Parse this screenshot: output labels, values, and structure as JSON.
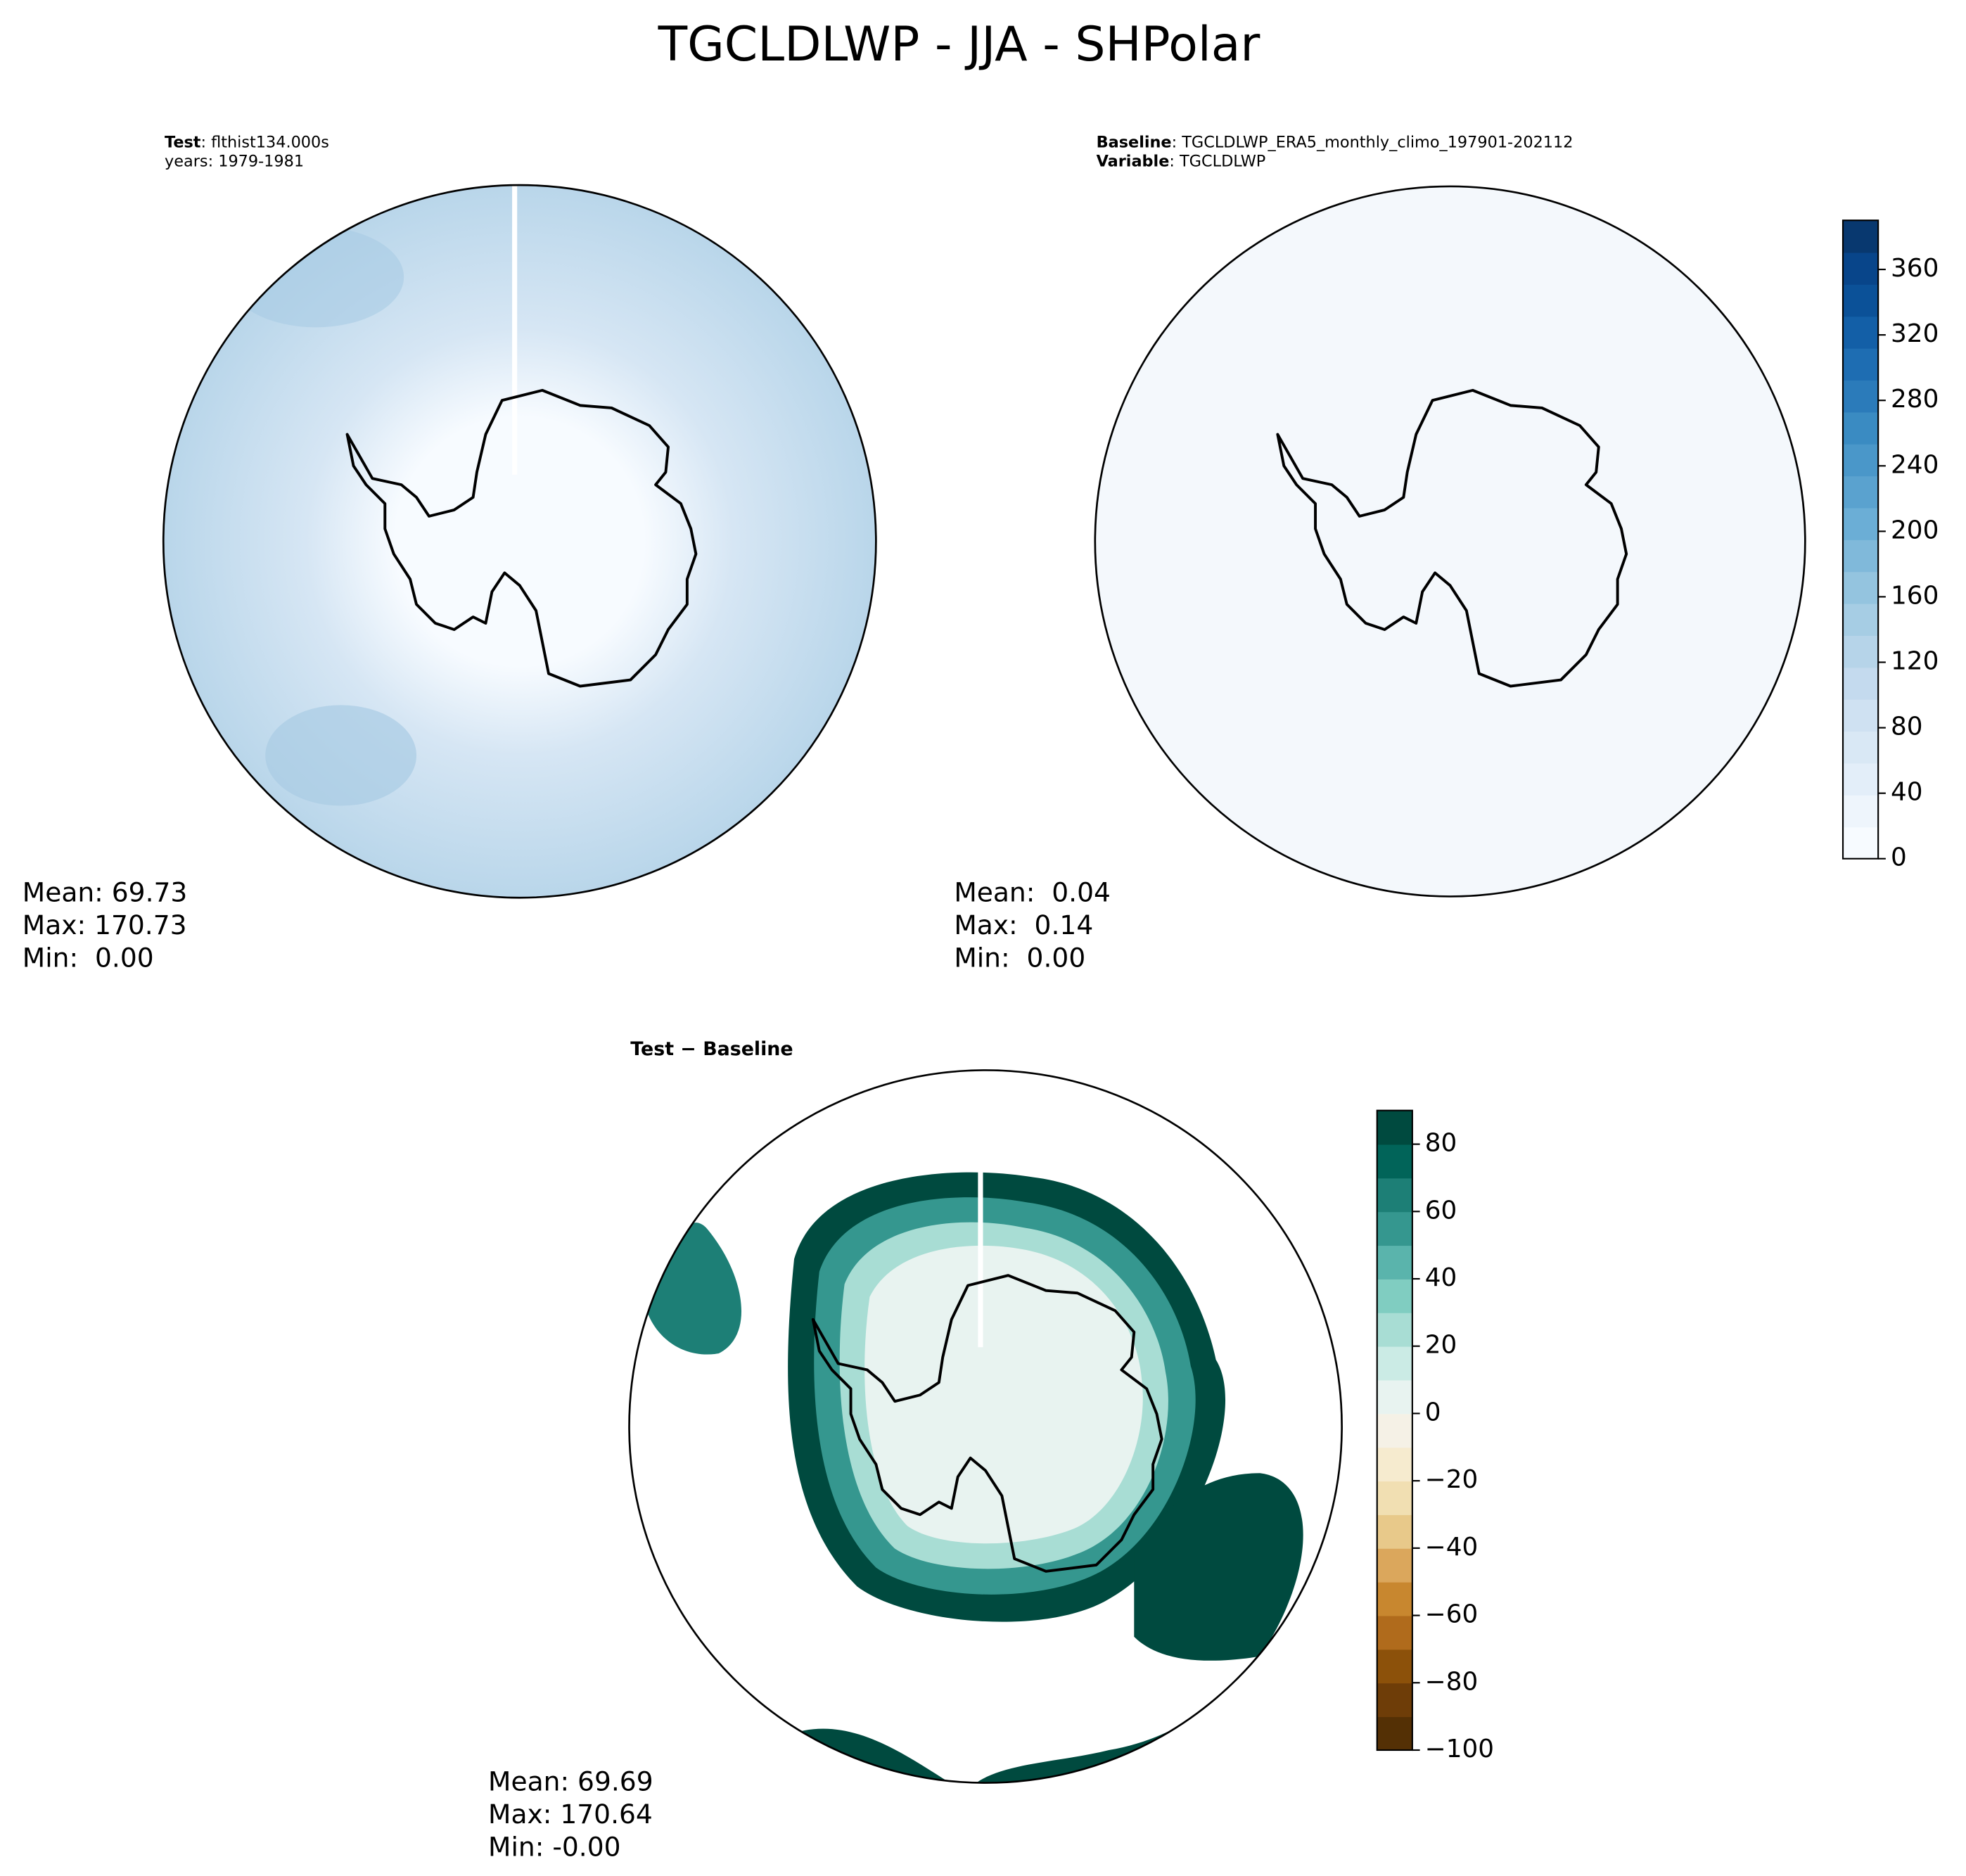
{
  "title": "TGCLDLWP - JJA - SHPolar",
  "panels": [
    {
      "heading": [
        {
          "label": "Test",
          "text": ": flthist134.000s"
        },
        {
          "text": "years: 1979-1981"
        }
      ],
      "stats": [
        "Mean: 69.73",
        "Max: 170.73",
        "Min:  0.00"
      ]
    },
    {
      "heading": [
        {
          "label": "Baseline",
          "text": ": TGCLDLWP_ERA5_monthly_climo_197901-202112"
        },
        {
          "label": "Variable",
          "text": ": TGCLDLWP"
        }
      ],
      "stats": [
        "Mean:  0.04",
        "Max:  0.14",
        "Min:  0.00"
      ]
    },
    {
      "heading": [
        {
          "label": "Test − Baseline"
        }
      ],
      "stats": [
        "Mean: 69.69",
        "Max: 170.64",
        "Min: -0.00"
      ]
    }
  ],
  "colorbars": [
    {
      "ylim": [
        0,
        390
      ],
      "yticks": [
        0,
        40,
        80,
        120,
        160,
        200,
        240,
        280,
        320,
        360
      ],
      "colors": [
        "#f7fbff",
        "#eef5fc",
        "#e3eef9",
        "#d9e8f5",
        "#cfe1f2",
        "#c4daee",
        "#b6d4e9",
        "#a6cde4",
        "#94c4df",
        "#80b9da",
        "#6baed6",
        "#5aa2cf",
        "#4a97c9",
        "#3a8bc2",
        "#2b7bba",
        "#1e6db2",
        "#135fa7",
        "#0b5198",
        "#08458a",
        "#08386f"
      ]
    },
    {
      "ylim": [
        -100,
        90
      ],
      "yticks": [
        {
          "value": -100,
          "label": "−100"
        },
        {
          "value": -80,
          "label": "−80"
        },
        {
          "value": -60,
          "label": "−60"
        },
        {
          "value": -40,
          "label": "−40"
        },
        {
          "value": -20,
          "label": "−20"
        },
        0,
        20,
        40,
        60,
        80
      ],
      "colors": [
        "#543005",
        "#6e3d08",
        "#8c510a",
        "#b06b1c",
        "#c8872f",
        "#dba75c",
        "#e8c98a",
        "#f1dfb2",
        "#f6ebcf",
        "#f5f1e6",
        "#e8f3f0",
        "#cbebe5",
        "#a8ddd4",
        "#80cdc1",
        "#5ab4ac",
        "#35978f",
        "#1d7f76",
        "#016459",
        "#004a3f"
      ]
    }
  ]
}
